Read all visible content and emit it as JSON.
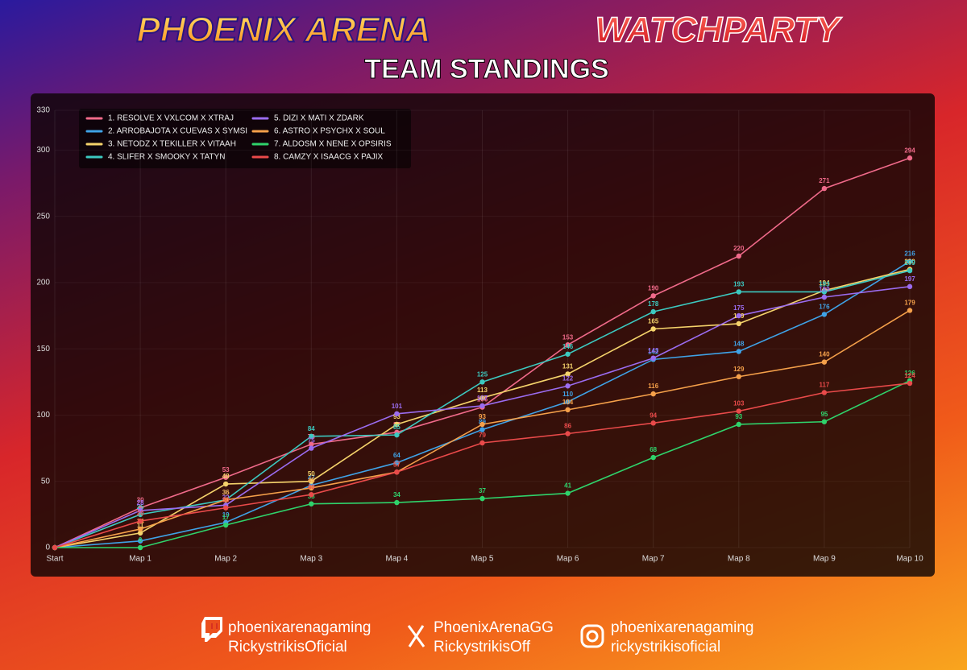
{
  "header": {
    "title_left": "PHOENIX ARENA",
    "title_right": "WATCHPARTY",
    "subtitle": "TEAM STANDINGS"
  },
  "footer": {
    "twitch": [
      "phoenixarenagaming",
      "RickystrikisOficial"
    ],
    "x": [
      "PhoenixArenaGG",
      "RickystrikisOff"
    ],
    "instagram": [
      "phoenixarenagaming",
      "rickystrikisoficial"
    ]
  },
  "chart_data": {
    "type": "line",
    "categories": [
      "Start",
      "Map 1",
      "Map 2",
      "Map 3",
      "Map 4",
      "Map 5",
      "Map 6",
      "Map 7",
      "Map 8",
      "Map 9",
      "Map 10"
    ],
    "ylim": [
      0,
      330
    ],
    "yticks": [
      0,
      50,
      100,
      150,
      200,
      250,
      300,
      330
    ],
    "grid": true,
    "legend": "top-left",
    "series": [
      {
        "name": "1. RESOLVE X VXLCOM X XTRAJ",
        "color": "#f06a8a",
        "values": [
          0,
          30,
          53,
          78,
          87,
          106,
          153,
          190,
          220,
          271,
          294
        ]
      },
      {
        "name": "2. ARROBAJOTA X CUEVAS X SYMSI",
        "color": "#3fa2e6",
        "values": [
          0,
          5,
          19,
          47,
          64,
          89,
          110,
          142,
          148,
          176,
          216
        ]
      },
      {
        "name": "3. NETODZ X TEKILLER X VITAAH",
        "color": "#f5d36b",
        "values": [
          0,
          11,
          48,
          50,
          93,
          113,
          131,
          165,
          169,
          194,
          210
        ]
      },
      {
        "name": "4. SLIFER X SMOOKY X TATYN",
        "color": "#3cc9c0",
        "values": [
          0,
          25,
          36,
          84,
          85,
          125,
          146,
          178,
          193,
          193,
          209
        ]
      },
      {
        "name": "5. DIZI X MATI X ZDARK",
        "color": "#9b6cf0",
        "values": [
          0,
          28,
          32,
          75,
          101,
          107,
          122,
          143,
          175,
          189,
          197
        ]
      },
      {
        "name": "6. ASTRO X PSYCHX X SOUL",
        "color": "#f5a04a",
        "values": [
          0,
          14,
          36,
          45,
          57,
          93,
          104,
          116,
          129,
          140,
          179
        ]
      },
      {
        "name": "7. ALDOSM X NENE X OPSIRIS",
        "color": "#2fd36b",
        "values": [
          0,
          0,
          17,
          33,
          34,
          37,
          41,
          68,
          93,
          95,
          126
        ]
      },
      {
        "name": "8. CAMZY X ISAACG X PAJIX",
        "color": "#e94a4a",
        "values": [
          0,
          20,
          30,
          40,
          57,
          79,
          86,
          94,
          103,
          117,
          124
        ]
      }
    ]
  }
}
